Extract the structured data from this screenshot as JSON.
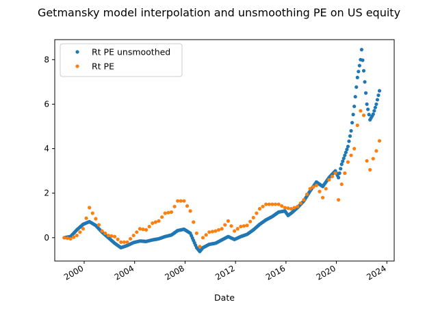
{
  "chart_data": {
    "type": "scatter",
    "title": "Getmansky model interpolation and unsmoothing PE on US equity",
    "xlabel": "Date",
    "ylabel": "",
    "x_type": "date",
    "xlim": [
      "1997-09-01",
      "2024-08-01"
    ],
    "ylim": [
      -1.05,
      8.9
    ],
    "x_ticks": [
      "2000",
      "2004",
      "2008",
      "2012",
      "2016",
      "2020",
      "2024"
    ],
    "y_ticks": [
      0,
      2,
      4,
      6,
      8
    ],
    "grid": false,
    "legend_position": "upper left",
    "series": [
      {
        "name": "Rt PE unsmoothed",
        "color": "#1f77b4",
        "marker": "circle",
        "frequency": "monthly",
        "start": "1998-06",
        "anchors": [
          [
            "1998-06",
            0.0
          ],
          [
            "1998-12",
            0.05
          ],
          [
            "1999-06",
            0.35
          ],
          [
            "1999-12",
            0.6
          ],
          [
            "2000-06",
            0.72
          ],
          [
            "2000-12",
            0.55
          ],
          [
            "2001-06",
            0.25
          ],
          [
            "2001-12",
            0.0
          ],
          [
            "2002-06",
            -0.25
          ],
          [
            "2002-12",
            -0.45
          ],
          [
            "2003-06",
            -0.35
          ],
          [
            "2003-12",
            -0.22
          ],
          [
            "2004-06",
            -0.15
          ],
          [
            "2004-12",
            -0.17
          ],
          [
            "2005-06",
            -0.1
          ],
          [
            "2005-12",
            -0.05
          ],
          [
            "2006-06",
            0.05
          ],
          [
            "2006-12",
            0.12
          ],
          [
            "2007-06",
            0.32
          ],
          [
            "2007-12",
            0.38
          ],
          [
            "2008-06",
            0.2
          ],
          [
            "2008-12",
            -0.45
          ],
          [
            "2009-03",
            -0.62
          ],
          [
            "2009-06",
            -0.45
          ],
          [
            "2009-12",
            -0.3
          ],
          [
            "2010-06",
            -0.25
          ],
          [
            "2010-12",
            -0.1
          ],
          [
            "2011-06",
            0.05
          ],
          [
            "2011-12",
            -0.08
          ],
          [
            "2012-06",
            0.05
          ],
          [
            "2012-12",
            0.15
          ],
          [
            "2013-06",
            0.35
          ],
          [
            "2013-12",
            0.6
          ],
          [
            "2014-06",
            0.8
          ],
          [
            "2014-12",
            0.95
          ],
          [
            "2015-06",
            1.15
          ],
          [
            "2015-12",
            1.2
          ],
          [
            "2016-03",
            1.0
          ],
          [
            "2016-06",
            1.1
          ],
          [
            "2016-12",
            1.35
          ],
          [
            "2017-06",
            1.65
          ],
          [
            "2017-12",
            2.1
          ],
          [
            "2018-06",
            2.5
          ],
          [
            "2018-12",
            2.3
          ],
          [
            "2019-06",
            2.7
          ],
          [
            "2019-12",
            3.0
          ],
          [
            "2020-03",
            2.7
          ],
          [
            "2020-06",
            3.3
          ],
          [
            "2020-12",
            4.1
          ],
          [
            "2021-03",
            4.8
          ],
          [
            "2021-06",
            5.9
          ],
          [
            "2021-09",
            7.2
          ],
          [
            "2021-12",
            8.0
          ],
          [
            "2022-01",
            8.45
          ],
          [
            "2022-03",
            7.5
          ],
          [
            "2022-06",
            6.0
          ],
          [
            "2022-09",
            5.3
          ],
          [
            "2022-12",
            5.55
          ],
          [
            "2023-03",
            6.0
          ],
          [
            "2023-06",
            6.6
          ]
        ]
      },
      {
        "name": "Rt PE",
        "color": "#ff7f0e",
        "marker": "circle",
        "frequency": "quarterly",
        "start": "1998-06",
        "anchors": [
          [
            "1998-06",
            0.0
          ],
          [
            "1998-12",
            -0.05
          ],
          [
            "1999-06",
            0.1
          ],
          [
            "1999-12",
            0.4
          ],
          [
            "2000-06",
            1.35
          ],
          [
            "2000-12",
            0.85
          ],
          [
            "2001-06",
            0.3
          ],
          [
            "2001-12",
            0.1
          ],
          [
            "2002-06",
            0.05
          ],
          [
            "2002-12",
            -0.2
          ],
          [
            "2003-06",
            -0.2
          ],
          [
            "2003-12",
            0.1
          ],
          [
            "2004-06",
            0.4
          ],
          [
            "2004-12",
            0.35
          ],
          [
            "2005-06",
            0.65
          ],
          [
            "2005-12",
            0.75
          ],
          [
            "2006-06",
            1.1
          ],
          [
            "2006-12",
            1.15
          ],
          [
            "2007-06",
            1.65
          ],
          [
            "2007-12",
            1.65
          ],
          [
            "2008-06",
            1.2
          ],
          [
            "2008-12",
            0.2
          ],
          [
            "2009-03",
            -0.4
          ],
          [
            "2009-06",
            0.0
          ],
          [
            "2009-12",
            0.25
          ],
          [
            "2010-06",
            0.3
          ],
          [
            "2010-12",
            0.4
          ],
          [
            "2011-06",
            0.75
          ],
          [
            "2011-12",
            0.3
          ],
          [
            "2012-06",
            0.5
          ],
          [
            "2012-12",
            0.55
          ],
          [
            "2013-06",
            0.9
          ],
          [
            "2013-12",
            1.3
          ],
          [
            "2014-06",
            1.5
          ],
          [
            "2014-12",
            1.5
          ],
          [
            "2015-06",
            1.5
          ],
          [
            "2015-12",
            1.35
          ],
          [
            "2016-06",
            1.3
          ],
          [
            "2016-12",
            1.4
          ],
          [
            "2017-06",
            1.7
          ],
          [
            "2017-12",
            2.2
          ],
          [
            "2018-06",
            2.35
          ],
          [
            "2018-12",
            1.8
          ],
          [
            "2019-06",
            2.6
          ],
          [
            "2019-12",
            2.9
          ],
          [
            "2020-03",
            1.7
          ],
          [
            "2020-06",
            2.4
          ],
          [
            "2020-12",
            3.4
          ],
          [
            "2021-06",
            4.0
          ],
          [
            "2021-09",
            5.05
          ],
          [
            "2021-12",
            5.7
          ],
          [
            "2022-03",
            5.5
          ],
          [
            "2022-06",
            3.45
          ],
          [
            "2022-09",
            3.05
          ],
          [
            "2022-12",
            3.55
          ],
          [
            "2023-03",
            3.9
          ],
          [
            "2023-06",
            4.35
          ]
        ]
      }
    ]
  }
}
